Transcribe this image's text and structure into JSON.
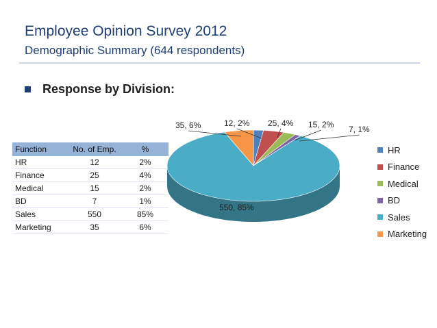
{
  "title": "Employee Opinion Survey 2012",
  "subtitle": "Demographic Summary (644 respondents)",
  "bullet": "Response by Division:",
  "table": {
    "headers": [
      "Function",
      "No. of Emp.",
      "%"
    ],
    "rows": [
      [
        "HR",
        "12",
        "2%"
      ],
      [
        "Finance",
        "25",
        "4%"
      ],
      [
        "Medical",
        "15",
        "2%"
      ],
      [
        "BD",
        "7",
        "1%"
      ],
      [
        "Sales",
        "550",
        "85%"
      ],
      [
        "Marketing",
        "35",
        "6%"
      ]
    ]
  },
  "chart_data": {
    "type": "pie",
    "three_d": true,
    "start_at": "top, clockwise",
    "legend_position": "right",
    "slices": [
      {
        "name": "HR",
        "value": 12,
        "percent": 2,
        "label": "12, 2%",
        "color": "#4f81bd"
      },
      {
        "name": "Finance",
        "value": 25,
        "percent": 4,
        "label": "25, 4%",
        "color": "#c0504d"
      },
      {
        "name": "Medical",
        "value": 15,
        "percent": 2,
        "label": "15, 2%",
        "color": "#9bbb59"
      },
      {
        "name": "BD",
        "value": 7,
        "percent": 1,
        "label": "7, 1%",
        "color": "#8064a2"
      },
      {
        "name": "Sales",
        "value": 550,
        "percent": 85,
        "label": "550, 85%",
        "color": "#4bacc6"
      },
      {
        "name": "Marketing",
        "value": 35,
        "percent": 6,
        "label": "35, 6%",
        "color": "#f79646"
      }
    ]
  }
}
